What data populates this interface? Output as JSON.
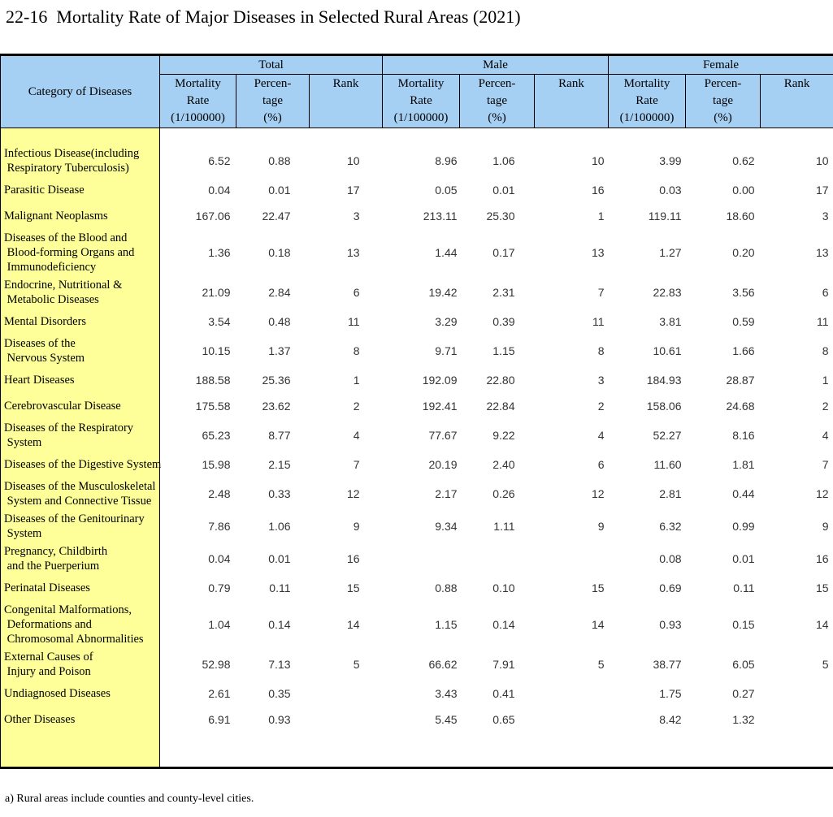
{
  "title": "22-16  Mortality Rate of Major Diseases in Selected Rural Areas (2021)",
  "footnote": "a) Rural areas include counties and county-level cities.",
  "colors": {
    "header_bg": "#A5D0F3",
    "category_bg": "#FFFF99",
    "border": "#000000",
    "number_text": "#333333"
  },
  "table": {
    "category_header": "Category of Diseases",
    "groups": [
      {
        "label": "Total"
      },
      {
        "label": "Male"
      },
      {
        "label": "Female"
      }
    ],
    "subheaders": {
      "mortality": [
        "Mortality",
        "Rate",
        "(1/100000)"
      ],
      "percentage": [
        "Percen-",
        "tage",
        "(%)"
      ],
      "rank": "Rank"
    },
    "rows": [
      {
        "category_lines": [
          "Infectious Disease(including",
          " Respiratory Tuberculosis)"
        ],
        "total": {
          "rate": "6.52",
          "pct": "0.88",
          "rank": "10"
        },
        "male": {
          "rate": "8.96",
          "pct": "1.06",
          "rank": "10"
        },
        "female": {
          "rate": "3.99",
          "pct": "0.62",
          "rank": "10"
        }
      },
      {
        "category_lines": [
          "Parasitic Disease"
        ],
        "total": {
          "rate": "0.04",
          "pct": "0.01",
          "rank": "17"
        },
        "male": {
          "rate": "0.05",
          "pct": "0.01",
          "rank": "16"
        },
        "female": {
          "rate": "0.03",
          "pct": "0.00",
          "rank": "17"
        }
      },
      {
        "category_lines": [
          "Malignant Neoplasms"
        ],
        "total": {
          "rate": "167.06",
          "pct": "22.47",
          "rank": "3"
        },
        "male": {
          "rate": "213.11",
          "pct": "25.30",
          "rank": "1"
        },
        "female": {
          "rate": "119.11",
          "pct": "18.60",
          "rank": "3"
        }
      },
      {
        "category_lines": [
          "Diseases of the Blood and",
          " Blood-forming Organs and",
          " Immunodeficiency"
        ],
        "total": {
          "rate": "1.36",
          "pct": "0.18",
          "rank": "13"
        },
        "male": {
          "rate": "1.44",
          "pct": "0.17",
          "rank": "13"
        },
        "female": {
          "rate": "1.27",
          "pct": "0.20",
          "rank": "13"
        }
      },
      {
        "category_lines": [
          "Endocrine, Nutritional &",
          " Metabolic Diseases"
        ],
        "total": {
          "rate": "21.09",
          "pct": "2.84",
          "rank": "6"
        },
        "male": {
          "rate": "19.42",
          "pct": "2.31",
          "rank": "7"
        },
        "female": {
          "rate": "22.83",
          "pct": "3.56",
          "rank": "6"
        }
      },
      {
        "category_lines": [
          "Mental Disorders"
        ],
        "total": {
          "rate": "3.54",
          "pct": "0.48",
          "rank": "11"
        },
        "male": {
          "rate": "3.29",
          "pct": "0.39",
          "rank": "11"
        },
        "female": {
          "rate": "3.81",
          "pct": "0.59",
          "rank": "11"
        }
      },
      {
        "category_lines": [
          "Diseases of the",
          " Nervous System"
        ],
        "total": {
          "rate": "10.15",
          "pct": "1.37",
          "rank": "8"
        },
        "male": {
          "rate": "9.71",
          "pct": "1.15",
          "rank": "8"
        },
        "female": {
          "rate": "10.61",
          "pct": "1.66",
          "rank": "8"
        }
      },
      {
        "category_lines": [
          "Heart Diseases"
        ],
        "total": {
          "rate": "188.58",
          "pct": "25.36",
          "rank": "1"
        },
        "male": {
          "rate": "192.09",
          "pct": "22.80",
          "rank": "3"
        },
        "female": {
          "rate": "184.93",
          "pct": "28.87",
          "rank": "1"
        }
      },
      {
        "category_lines": [
          "Cerebrovascular Disease"
        ],
        "total": {
          "rate": "175.58",
          "pct": "23.62",
          "rank": "2"
        },
        "male": {
          "rate": "192.41",
          "pct": "22.84",
          "rank": "2"
        },
        "female": {
          "rate": "158.06",
          "pct": "24.68",
          "rank": "2"
        }
      },
      {
        "category_lines": [
          "Diseases of the Respiratory",
          " System"
        ],
        "total": {
          "rate": "65.23",
          "pct": "8.77",
          "rank": "4"
        },
        "male": {
          "rate": "77.67",
          "pct": "9.22",
          "rank": "4"
        },
        "female": {
          "rate": "52.27",
          "pct": "8.16",
          "rank": "4"
        }
      },
      {
        "category_lines": [
          "Diseases of the Digestive System"
        ],
        "total": {
          "rate": "15.98",
          "pct": "2.15",
          "rank": "7"
        },
        "male": {
          "rate": "20.19",
          "pct": "2.40",
          "rank": "6"
        },
        "female": {
          "rate": "11.60",
          "pct": "1.81",
          "rank": "7"
        }
      },
      {
        "category_lines": [
          "Diseases of the Musculoskeletal",
          " System and Connective Tissue"
        ],
        "total": {
          "rate": "2.48",
          "pct": "0.33",
          "rank": "12"
        },
        "male": {
          "rate": "2.17",
          "pct": "0.26",
          "rank": "12"
        },
        "female": {
          "rate": "2.81",
          "pct": "0.44",
          "rank": "12"
        }
      },
      {
        "category_lines": [
          "Diseases of the Genitourinary",
          " System"
        ],
        "total": {
          "rate": "7.86",
          "pct": "1.06",
          "rank": "9"
        },
        "male": {
          "rate": "9.34",
          "pct": "1.11",
          "rank": "9"
        },
        "female": {
          "rate": "6.32",
          "pct": "0.99",
          "rank": "9"
        }
      },
      {
        "category_lines": [
          "Pregnancy, Childbirth",
          " and the Puerperium"
        ],
        "total": {
          "rate": "0.04",
          "pct": "0.01",
          "rank": "16"
        },
        "male": {
          "rate": "",
          "pct": "",
          "rank": ""
        },
        "female": {
          "rate": "0.08",
          "pct": "0.01",
          "rank": "16"
        }
      },
      {
        "category_lines": [
          "Perinatal Diseases"
        ],
        "total": {
          "rate": "0.79",
          "pct": "0.11",
          "rank": "15"
        },
        "male": {
          "rate": "0.88",
          "pct": "0.10",
          "rank": "15"
        },
        "female": {
          "rate": "0.69",
          "pct": "0.11",
          "rank": "15"
        }
      },
      {
        "category_lines": [
          "Congenital Malformations,",
          " Deformations and",
          " Chromosomal Abnormalities"
        ],
        "total": {
          "rate": "1.04",
          "pct": "0.14",
          "rank": "14"
        },
        "male": {
          "rate": "1.15",
          "pct": "0.14",
          "rank": "14"
        },
        "female": {
          "rate": "0.93",
          "pct": "0.15",
          "rank": "14"
        }
      },
      {
        "category_lines": [
          "External Causes of",
          " Injury and Poison"
        ],
        "total": {
          "rate": "52.98",
          "pct": "7.13",
          "rank": "5"
        },
        "male": {
          "rate": "66.62",
          "pct": "7.91",
          "rank": "5"
        },
        "female": {
          "rate": "38.77",
          "pct": "6.05",
          "rank": "5"
        }
      },
      {
        "category_lines": [
          "Undiagnosed Diseases"
        ],
        "total": {
          "rate": "2.61",
          "pct": "0.35",
          "rank": ""
        },
        "male": {
          "rate": "3.43",
          "pct": "0.41",
          "rank": ""
        },
        "female": {
          "rate": "1.75",
          "pct": "0.27",
          "rank": ""
        }
      },
      {
        "category_lines": [
          "Other Diseases"
        ],
        "total": {
          "rate": "6.91",
          "pct": "0.93",
          "rank": ""
        },
        "male": {
          "rate": "5.45",
          "pct": "0.65",
          "rank": ""
        },
        "female": {
          "rate": "8.42",
          "pct": "1.32",
          "rank": ""
        }
      }
    ]
  }
}
